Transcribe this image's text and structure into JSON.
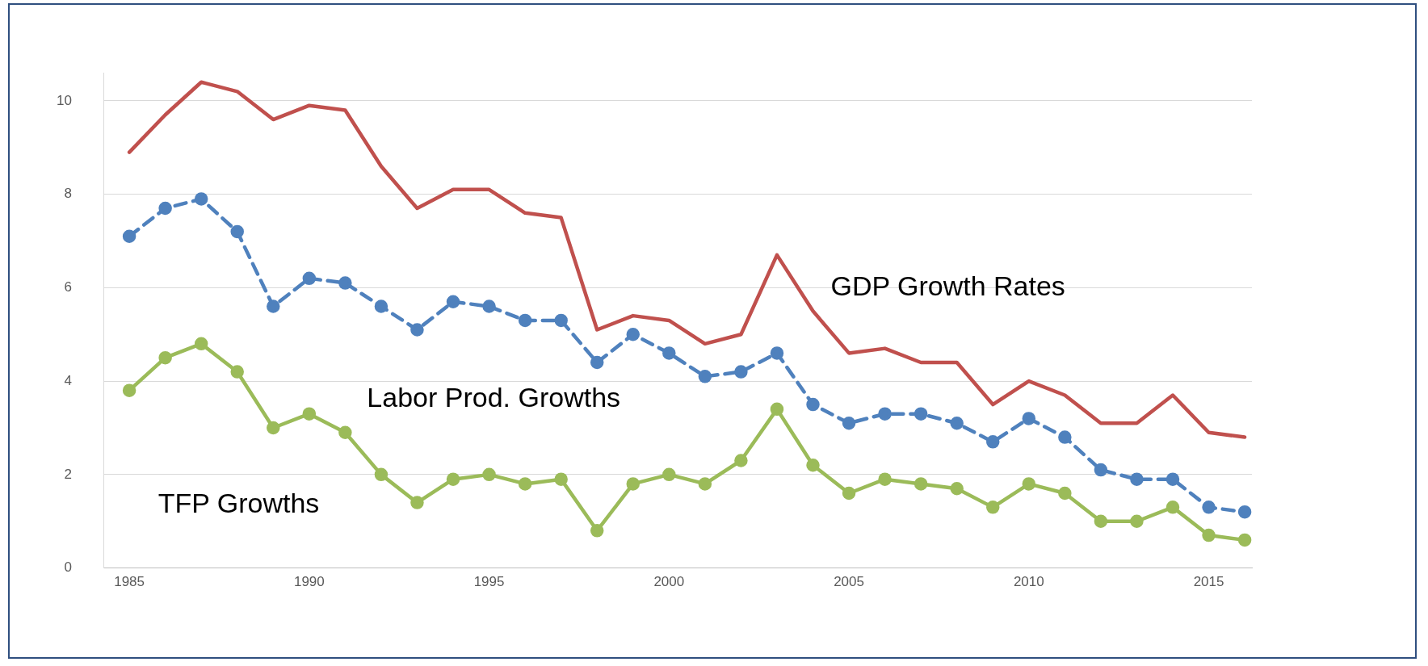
{
  "chart_data": {
    "type": "line",
    "x": [
      1985,
      1986,
      1987,
      1988,
      1989,
      1990,
      1991,
      1992,
      1993,
      1994,
      1995,
      1996,
      1997,
      1998,
      1999,
      2000,
      2001,
      2002,
      2003,
      2004,
      2005,
      2006,
      2007,
      2008,
      2009,
      2010,
      2011,
      2012,
      2013,
      2014,
      2015,
      2016
    ],
    "series": [
      {
        "name": "GDP Growth Rates",
        "color": "#c0504d",
        "marker": "none",
        "line_style": "solid",
        "values": [
          8.9,
          9.7,
          10.4,
          10.2,
          9.6,
          9.9,
          9.8,
          8.6,
          7.7,
          8.1,
          8.1,
          7.6,
          7.5,
          5.1,
          5.4,
          5.3,
          4.8,
          5.0,
          6.7,
          5.5,
          4.6,
          4.7,
          4.4,
          4.4,
          3.5,
          4.0,
          3.7,
          3.1,
          3.1,
          3.7,
          2.9,
          2.8
        ]
      },
      {
        "name": "Labor Prod. Growths",
        "color": "#4f81bd",
        "marker": "circle",
        "line_style": "dashed",
        "values": [
          7.1,
          7.7,
          7.9,
          7.2,
          5.6,
          6.2,
          6.1,
          5.6,
          5.1,
          5.7,
          5.6,
          5.3,
          5.3,
          4.4,
          5.0,
          4.6,
          4.1,
          4.2,
          4.6,
          3.5,
          3.1,
          3.3,
          3.3,
          3.1,
          2.7,
          3.2,
          2.8,
          2.1,
          1.9,
          1.9,
          1.3,
          1.2
        ]
      },
      {
        "name": "TFP Growths",
        "color": "#9bbb59",
        "marker": "circle",
        "line_style": "solid",
        "values": [
          3.8,
          4.5,
          4.8,
          4.2,
          3.0,
          3.3,
          2.9,
          2.0,
          1.4,
          1.9,
          2.0,
          1.8,
          1.9,
          0.8,
          1.8,
          2.0,
          1.8,
          2.3,
          3.4,
          2.2,
          1.6,
          1.9,
          1.8,
          1.7,
          1.3,
          1.8,
          1.6,
          1.0,
          1.0,
          1.3,
          0.7,
          0.6
        ]
      }
    ],
    "xlim": [
      1984.3,
      2016.2
    ],
    "xticks": [
      1985,
      1990,
      1995,
      2000,
      2005,
      2010,
      2015
    ],
    "ylim": [
      0,
      10.6
    ],
    "yticks": [
      0,
      2,
      4,
      6,
      8,
      10
    ],
    "grid": "y",
    "legend": false
  }
}
